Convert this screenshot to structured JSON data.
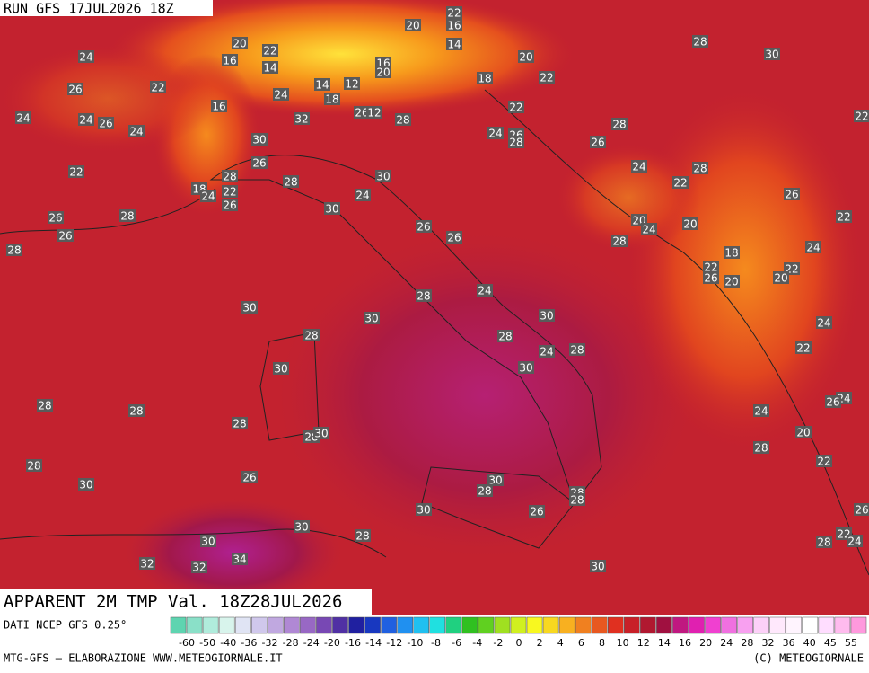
{
  "header": {
    "run": "RUN GFS 17JUL2026 18Z"
  },
  "map": {
    "title": "APPARENT 2M TMP Val. 18Z28JUL2026",
    "contour_labels": [
      22,
      20,
      16,
      20,
      22,
      14,
      28,
      30,
      24,
      16,
      14,
      16,
      20,
      20,
      26,
      22,
      18,
      22,
      14,
      12,
      24,
      18,
      24,
      24,
      26,
      24,
      16,
      32,
      26,
      12,
      28,
      22,
      28,
      22,
      24,
      26,
      28,
      26,
      30,
      26,
      22,
      24,
      28,
      28,
      28,
      30,
      22,
      18,
      24,
      22,
      24,
      26,
      26,
      30,
      22,
      26,
      28,
      20,
      24,
      20,
      26,
      26,
      26,
      28,
      28,
      24,
      18,
      22,
      22,
      26,
      20,
      20,
      24,
      28,
      30,
      30,
      30,
      24,
      28,
      28,
      24,
      28,
      22,
      30,
      30,
      24,
      26,
      28,
      28,
      24,
      28,
      28,
      30,
      20,
      28,
      28,
      22,
      26,
      30,
      30,
      28,
      28,
      28,
      26,
      30,
      26,
      30,
      28,
      22,
      24,
      28,
      30,
      32,
      32,
      34,
      30
    ]
  },
  "colorbar": {
    "source": "DATI NCEP GFS 0.25°",
    "labels": [
      -60,
      -50,
      -40,
      -36,
      -32,
      -28,
      -24,
      -20,
      -16,
      -14,
      -12,
      -10,
      -8,
      -6,
      -4,
      -2,
      0,
      2,
      4,
      6,
      8,
      10,
      12,
      14,
      16,
      20,
      24,
      28,
      32,
      36,
      40,
      45,
      55
    ]
  },
  "footer": {
    "left": "MTG-GFS — ELABORAZIONE WWW.METEOGIORNALE.IT",
    "right": "(C) METEOGIORNALE"
  }
}
